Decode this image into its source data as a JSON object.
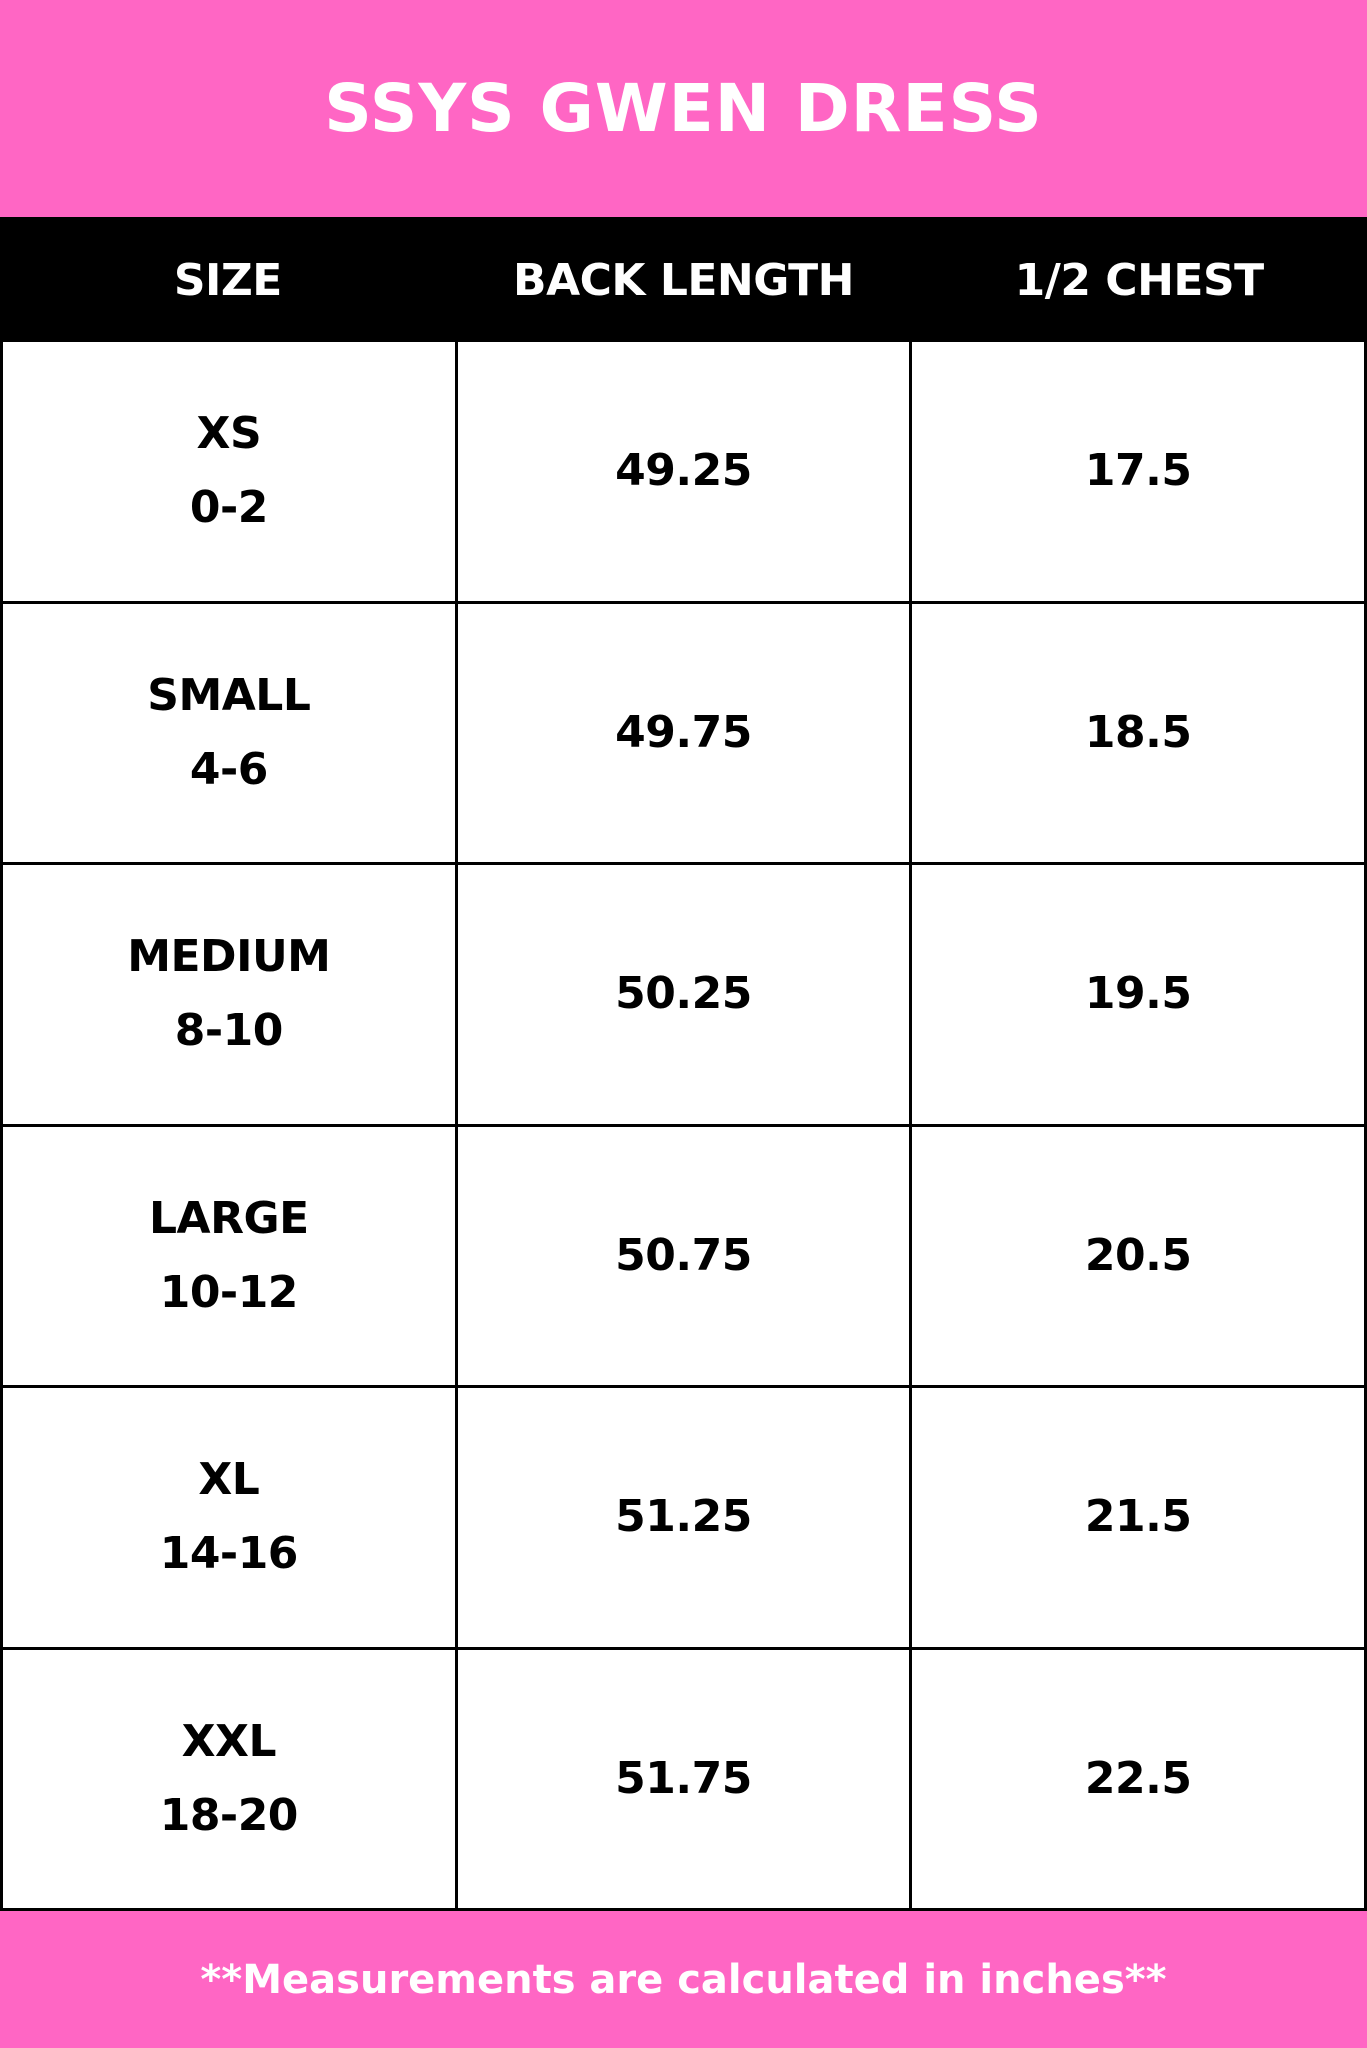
{
  "title": "SSYS GWEN DRESS",
  "colors": {
    "accent": "#ff66c4",
    "header_bg": "#000000",
    "text": "#000000"
  },
  "table": {
    "headers": [
      "SIZE",
      "BACK LENGTH",
      "1/2 CHEST"
    ],
    "rows": [
      {
        "size": "XS",
        "range": "0-2",
        "back_length": "49.25",
        "half_chest": "17.5"
      },
      {
        "size": "SMALL",
        "range": "4-6",
        "back_length": "49.75",
        "half_chest": "18.5"
      },
      {
        "size": "MEDIUM",
        "range": "8-10",
        "back_length": "50.25",
        "half_chest": "19.5"
      },
      {
        "size": "LARGE",
        "range": "10-12",
        "back_length": "50.75",
        "half_chest": "20.5"
      },
      {
        "size": "XL",
        "range": "14-16",
        "back_length": "51.25",
        "half_chest": "21.5"
      },
      {
        "size": "XXL",
        "range": "18-20",
        "back_length": "51.75",
        "half_chest": "22.5"
      }
    ]
  },
  "footer": "**Measurements are calculated in inches**"
}
